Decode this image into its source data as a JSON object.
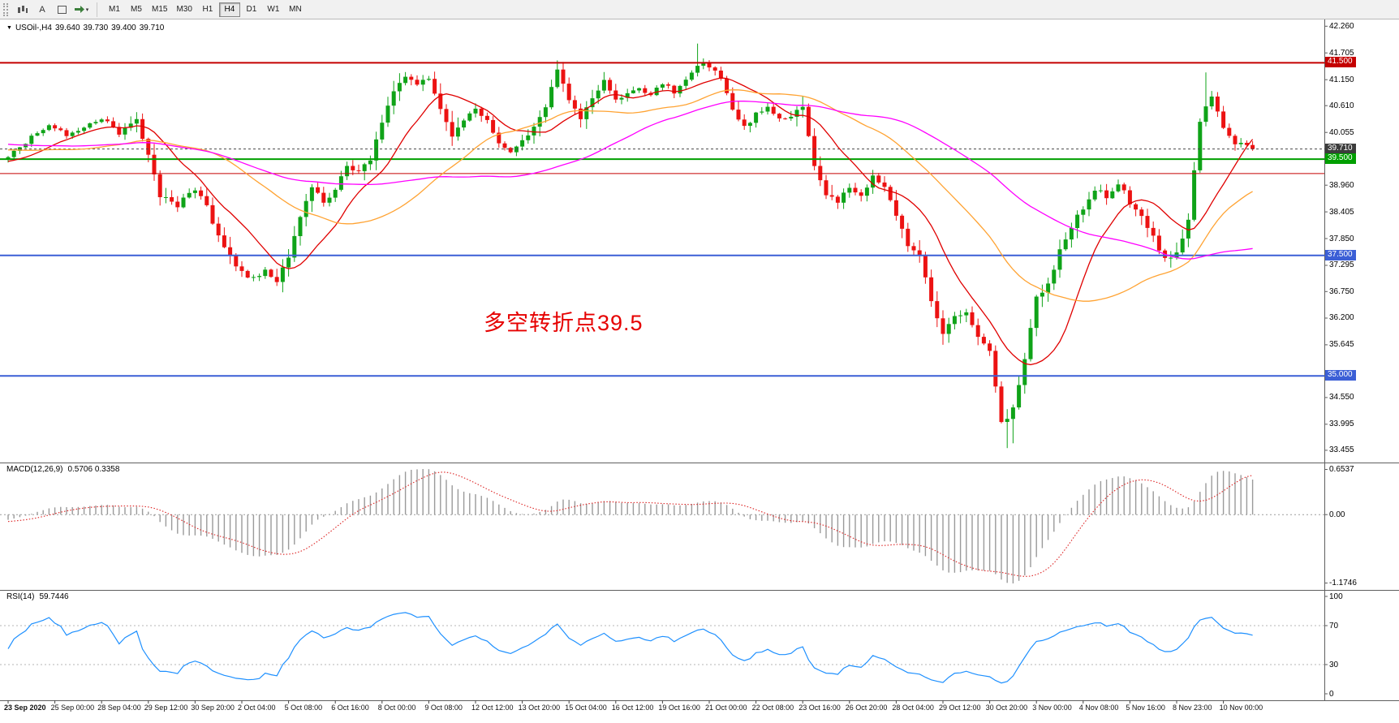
{
  "toolbar": {
    "a_button_label": "A",
    "icons": [
      "candlestick-chart-icon",
      "letter-a-icon",
      "frame-icon",
      "swap-arrows-icon",
      "dropdown-caret-icon"
    ],
    "caret_glyph": "▾",
    "timeframes": [
      {
        "label": "M1"
      },
      {
        "label": "M5"
      },
      {
        "label": "M15"
      },
      {
        "label": "M30"
      },
      {
        "label": "H1"
      },
      {
        "label": "H4",
        "active": true
      },
      {
        "label": "D1"
      },
      {
        "label": "W1"
      },
      {
        "label": "MN"
      }
    ]
  },
  "symbol_line": {
    "marker": "▼",
    "symbol": "USOil-,H4",
    "open": "39.640",
    "high": "39.730",
    "low": "39.400",
    "close": "39.710"
  },
  "annotation": {
    "text": "多空转折点39.5",
    "color": "#e60000"
  },
  "price_scale": {
    "labels": [
      "42.260",
      "41.705",
      "41.150",
      "40.610",
      "40.055",
      "38.960",
      "38.405",
      "37.850",
      "37.295",
      "36.750",
      "36.200",
      "35.645",
      "34.550",
      "33.995",
      "33.455"
    ],
    "badges": [
      {
        "value": "41.500",
        "price": 41.5,
        "bg": "#c40000"
      },
      {
        "value": "39.710",
        "price": 39.71,
        "bg": "#3c3c3c"
      },
      {
        "value": "39.500",
        "price": 39.5,
        "bg": "#009f00"
      },
      {
        "value": "37.500",
        "price": 37.5,
        "bg": "#3b5fd6"
      },
      {
        "value": "35.000",
        "price": 35.0,
        "bg": "#3b5fd6"
      }
    ]
  },
  "indicator_panels": {
    "macd": {
      "label": "MACD(12,26,9)",
      "values": "0.5706 0.3358",
      "scale": [
        "0.6537",
        "0.00",
        "-1.1746"
      ]
    },
    "rsi": {
      "label": "RSI(14)",
      "value": "59.7446",
      "scale": [
        "100",
        "70",
        "30",
        "0"
      ],
      "levels": [
        70,
        30
      ]
    }
  },
  "time_axis": [
    "23 Sep 2020",
    "25 Sep 00:00",
    "28 Sep 04:00",
    "29 Sep 12:00",
    "30 Sep 20:00",
    "2 Oct 04:00",
    "5 Oct 08:00",
    "6 Oct 16:00",
    "8 Oct 00:00",
    "9 Oct 08:00",
    "12 Oct 12:00",
    "13 Oct 20:00",
    "15 Oct 04:00",
    "16 Oct 12:00",
    "19 Oct 16:00",
    "21 Oct 00:00",
    "22 Oct 08:00",
    "23 Oct 16:00",
    "26 Oct 20:00",
    "28 Oct 04:00",
    "29 Oct 12:00",
    "30 Oct 20:00",
    "3 Nov 00:00",
    "4 Nov 08:00",
    "5 Nov 16:00",
    "8 Nov 23:00",
    "10 Nov 00:00"
  ],
  "colors": {
    "bull": "#0fa318",
    "bear": "#ec1212",
    "rsi_line": "#1e90ff",
    "macd_hist": "#9a9a9a",
    "macd_signal": "#dd2323",
    "current_price_line": "#474747"
  },
  "chart_data": {
    "type": "candlestick",
    "symbol": "USOil-",
    "timeframe": "H4",
    "ohlc_readout": {
      "open": 39.64,
      "high": 39.73,
      "low": 39.4,
      "close": 39.71
    },
    "price_axis_range": [
      33.2,
      42.4
    ],
    "visible_high": 41.9,
    "visible_low": 33.5,
    "hlines": [
      {
        "price": 41.5,
        "color": "#c40000",
        "w": 2
      },
      {
        "price": 39.71,
        "color": "#474747",
        "w": 1,
        "dash": true
      },
      {
        "price": 39.5,
        "color": "#009f00",
        "w": 2
      },
      {
        "price": 39.2,
        "color": "#c40000",
        "w": 1
      },
      {
        "price": 37.5,
        "color": "#3b5fd6",
        "w": 2
      },
      {
        "price": 35.0,
        "color": "#3b5fd6",
        "w": 2
      }
    ],
    "moving_averages": [
      {
        "period": 12,
        "color": "#e00000"
      },
      {
        "period": 34,
        "color": "#ffa333"
      },
      {
        "period": 62,
        "color": "#ff00ff"
      }
    ],
    "macd": {
      "fast": 12,
      "slow": 26,
      "signal": 9,
      "current": 0.5706,
      "current_signal": 0.3358,
      "scale_range": [
        -1.1746,
        0.6537
      ]
    },
    "rsi": {
      "period": 14,
      "current": 59.7446,
      "range": [
        0,
        100
      ]
    },
    "close_waypoints": [
      [
        -70,
        39.8
      ],
      [
        -55,
        40.3
      ],
      [
        -40,
        39.6
      ],
      [
        -25,
        40.1
      ],
      [
        -12,
        39.4
      ],
      [
        -1,
        39.5
      ],
      [
        0,
        39.55
      ],
      [
        3,
        39.85
      ],
      [
        7,
        40.25
      ],
      [
        10,
        39.95
      ],
      [
        12,
        40.05
      ],
      [
        16,
        40.35
      ],
      [
        19,
        40.05
      ],
      [
        22,
        40.35
      ],
      [
        24,
        39.6
      ],
      [
        26,
        38.75
      ],
      [
        29,
        38.55
      ],
      [
        32,
        38.9
      ],
      [
        34,
        38.5
      ],
      [
        36,
        37.9
      ],
      [
        38,
        37.45
      ],
      [
        40,
        37.15
      ],
      [
        42,
        37.0
      ],
      [
        44,
        37.2
      ],
      [
        46,
        36.95
      ],
      [
        48,
        37.5
      ],
      [
        50,
        38.3
      ],
      [
        52,
        38.9
      ],
      [
        54,
        38.6
      ],
      [
        56,
        38.85
      ],
      [
        58,
        39.4
      ],
      [
        60,
        39.2
      ],
      [
        62,
        39.5
      ],
      [
        64,
        40.3
      ],
      [
        66,
        40.9
      ],
      [
        68,
        41.2
      ],
      [
        70,
        41.1
      ],
      [
        72,
        41.15
      ],
      [
        74,
        40.5
      ],
      [
        76,
        40.0
      ],
      [
        78,
        40.3
      ],
      [
        80,
        40.55
      ],
      [
        82,
        40.3
      ],
      [
        84,
        39.85
      ],
      [
        86,
        39.65
      ],
      [
        88,
        39.9
      ],
      [
        90,
        40.15
      ],
      [
        92,
        40.6
      ],
      [
        94,
        41.35
      ],
      [
        96,
        40.7
      ],
      [
        98,
        40.35
      ],
      [
        100,
        40.8
      ],
      [
        102,
        41.1
      ],
      [
        104,
        40.75
      ],
      [
        106,
        40.85
      ],
      [
        108,
        41.0
      ],
      [
        110,
        40.85
      ],
      [
        112,
        41.05
      ],
      [
        114,
        40.9
      ],
      [
        116,
        41.1
      ],
      [
        118,
        41.45
      ],
      [
        120,
        41.45
      ],
      [
        122,
        41.15
      ],
      [
        124,
        40.55
      ],
      [
        126,
        40.15
      ],
      [
        128,
        40.45
      ],
      [
        130,
        40.55
      ],
      [
        132,
        40.3
      ],
      [
        134,
        40.4
      ],
      [
        136,
        40.6
      ],
      [
        138,
        39.35
      ],
      [
        140,
        38.75
      ],
      [
        142,
        38.6
      ],
      [
        144,
        38.95
      ],
      [
        146,
        38.75
      ],
      [
        148,
        39.15
      ],
      [
        150,
        38.9
      ],
      [
        152,
        38.3
      ],
      [
        154,
        37.7
      ],
      [
        156,
        37.5
      ],
      [
        158,
        36.6
      ],
      [
        160,
        35.9
      ],
      [
        162,
        36.2
      ],
      [
        164,
        36.35
      ],
      [
        166,
        35.8
      ],
      [
        168,
        35.5
      ],
      [
        170,
        34.0
      ],
      [
        172,
        34.3
      ],
      [
        174,
        35.4
      ],
      [
        176,
        36.6
      ],
      [
        178,
        36.9
      ],
      [
        180,
        37.6
      ],
      [
        182,
        38.1
      ],
      [
        184,
        38.5
      ],
      [
        186,
        38.9
      ],
      [
        188,
        38.7
      ],
      [
        190,
        39.0
      ],
      [
        192,
        38.6
      ],
      [
        194,
        38.3
      ],
      [
        196,
        37.9
      ],
      [
        198,
        37.4
      ],
      [
        200,
        37.6
      ],
      [
        202,
        38.2
      ],
      [
        204,
        40.3
      ],
      [
        206,
        40.8
      ],
      [
        208,
        40.2
      ],
      [
        210,
        39.85
      ],
      [
        213,
        39.71
      ]
    ],
    "wick_extremes": [
      [
        94,
        "h",
        41.55
      ],
      [
        118,
        "h",
        41.9
      ],
      [
        171,
        "l",
        33.5
      ],
      [
        172,
        "l",
        33.6
      ],
      [
        205,
        "h",
        41.3
      ]
    ]
  }
}
